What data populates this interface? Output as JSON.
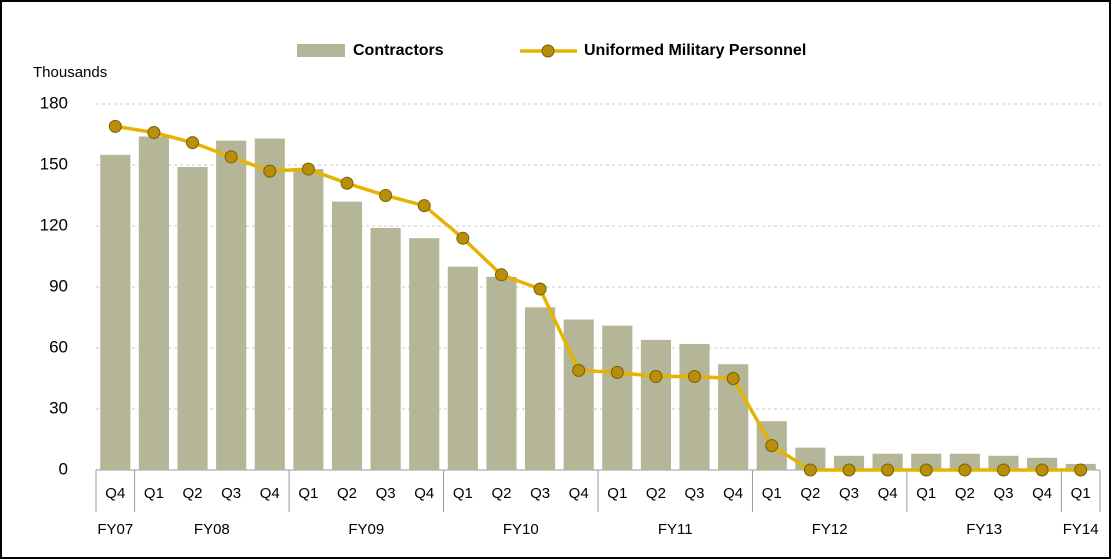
{
  "chart_data": {
    "type": "bar-line",
    "y_label": "Thousands",
    "groups": [
      {
        "name": "FY07",
        "quarters": [
          "Q4"
        ]
      },
      {
        "name": "FY08",
        "quarters": [
          "Q1",
          "Q2",
          "Q3",
          "Q4"
        ]
      },
      {
        "name": "FY09",
        "quarters": [
          "Q1",
          "Q2",
          "Q3",
          "Q4"
        ]
      },
      {
        "name": "FY10",
        "quarters": [
          "Q1",
          "Q2",
          "Q3",
          "Q4"
        ]
      },
      {
        "name": "FY11",
        "quarters": [
          "Q1",
          "Q2",
          "Q3",
          "Q4"
        ]
      },
      {
        "name": "FY12",
        "quarters": [
          "Q1",
          "Q2",
          "Q3",
          "Q4"
        ]
      },
      {
        "name": "FY13",
        "quarters": [
          "Q1",
          "Q2",
          "Q3",
          "Q4"
        ]
      },
      {
        "name": "FY14",
        "quarters": [
          "Q1"
        ]
      }
    ],
    "series": [
      {
        "name": "Contractors",
        "kind": "bar",
        "color": "#b5b597",
        "values": [
          155,
          164,
          149,
          162,
          163,
          148,
          132,
          119,
          114,
          100,
          95,
          80,
          74,
          71,
          64,
          62,
          52,
          24,
          11,
          7,
          8,
          8,
          8,
          7,
          6,
          3
        ]
      },
      {
        "name": "Uniformed Military Personnel",
        "kind": "line",
        "color": "#e6b400",
        "marker_color": "#b88f0a",
        "values": [
          169,
          166,
          161,
          154,
          147,
          148,
          141,
          135,
          130,
          114,
          96,
          89,
          49,
          48,
          46,
          46,
          45,
          12,
          0,
          0,
          0,
          0,
          0,
          0,
          0,
          0
        ]
      }
    ],
    "ylim": [
      0,
      180
    ],
    "yticks": [
      0,
      30,
      60,
      90,
      120,
      150,
      180
    ],
    "grid": true
  }
}
